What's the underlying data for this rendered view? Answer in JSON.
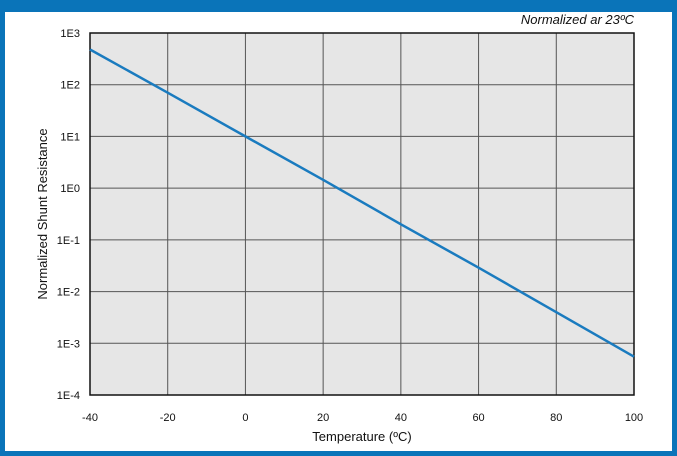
{
  "colors": {
    "frame": "#0a74b9",
    "plot_background": "#e6e6e6",
    "grid": "#555555",
    "line": "#1a7bbf"
  },
  "chart_data": {
    "type": "line",
    "annotation": "Normalized ar 23ºC",
    "xlabel": "Temperature (ºC)",
    "ylabel": "Normalized Shunt Resistance",
    "xlim": [
      -40,
      100
    ],
    "ylim": [
      0.0001,
      1000
    ],
    "yscale": "log",
    "grid": true,
    "x_ticks": [
      -40,
      -20,
      0,
      20,
      40,
      60,
      80,
      100
    ],
    "x_tick_labels": [
      "-40",
      "-20",
      "0",
      "20",
      "40",
      "60",
      "80",
      "100"
    ],
    "y_ticks": [
      0.0001,
      0.001,
      0.01,
      0.1,
      1,
      10,
      100,
      1000
    ],
    "y_tick_labels": [
      "1E-4",
      "1E-3",
      "1E-2",
      "1E-1",
      "1E0",
      "1E1",
      "1E2",
      "1E3"
    ],
    "series": [
      {
        "x": [
          -40,
          -20,
          0,
          20,
          40,
          60,
          80,
          100
        ],
        "y": [
          480,
          70,
          10,
          1.45,
          0.2,
          0.029,
          0.004,
          0.00055
        ]
      }
    ]
  }
}
